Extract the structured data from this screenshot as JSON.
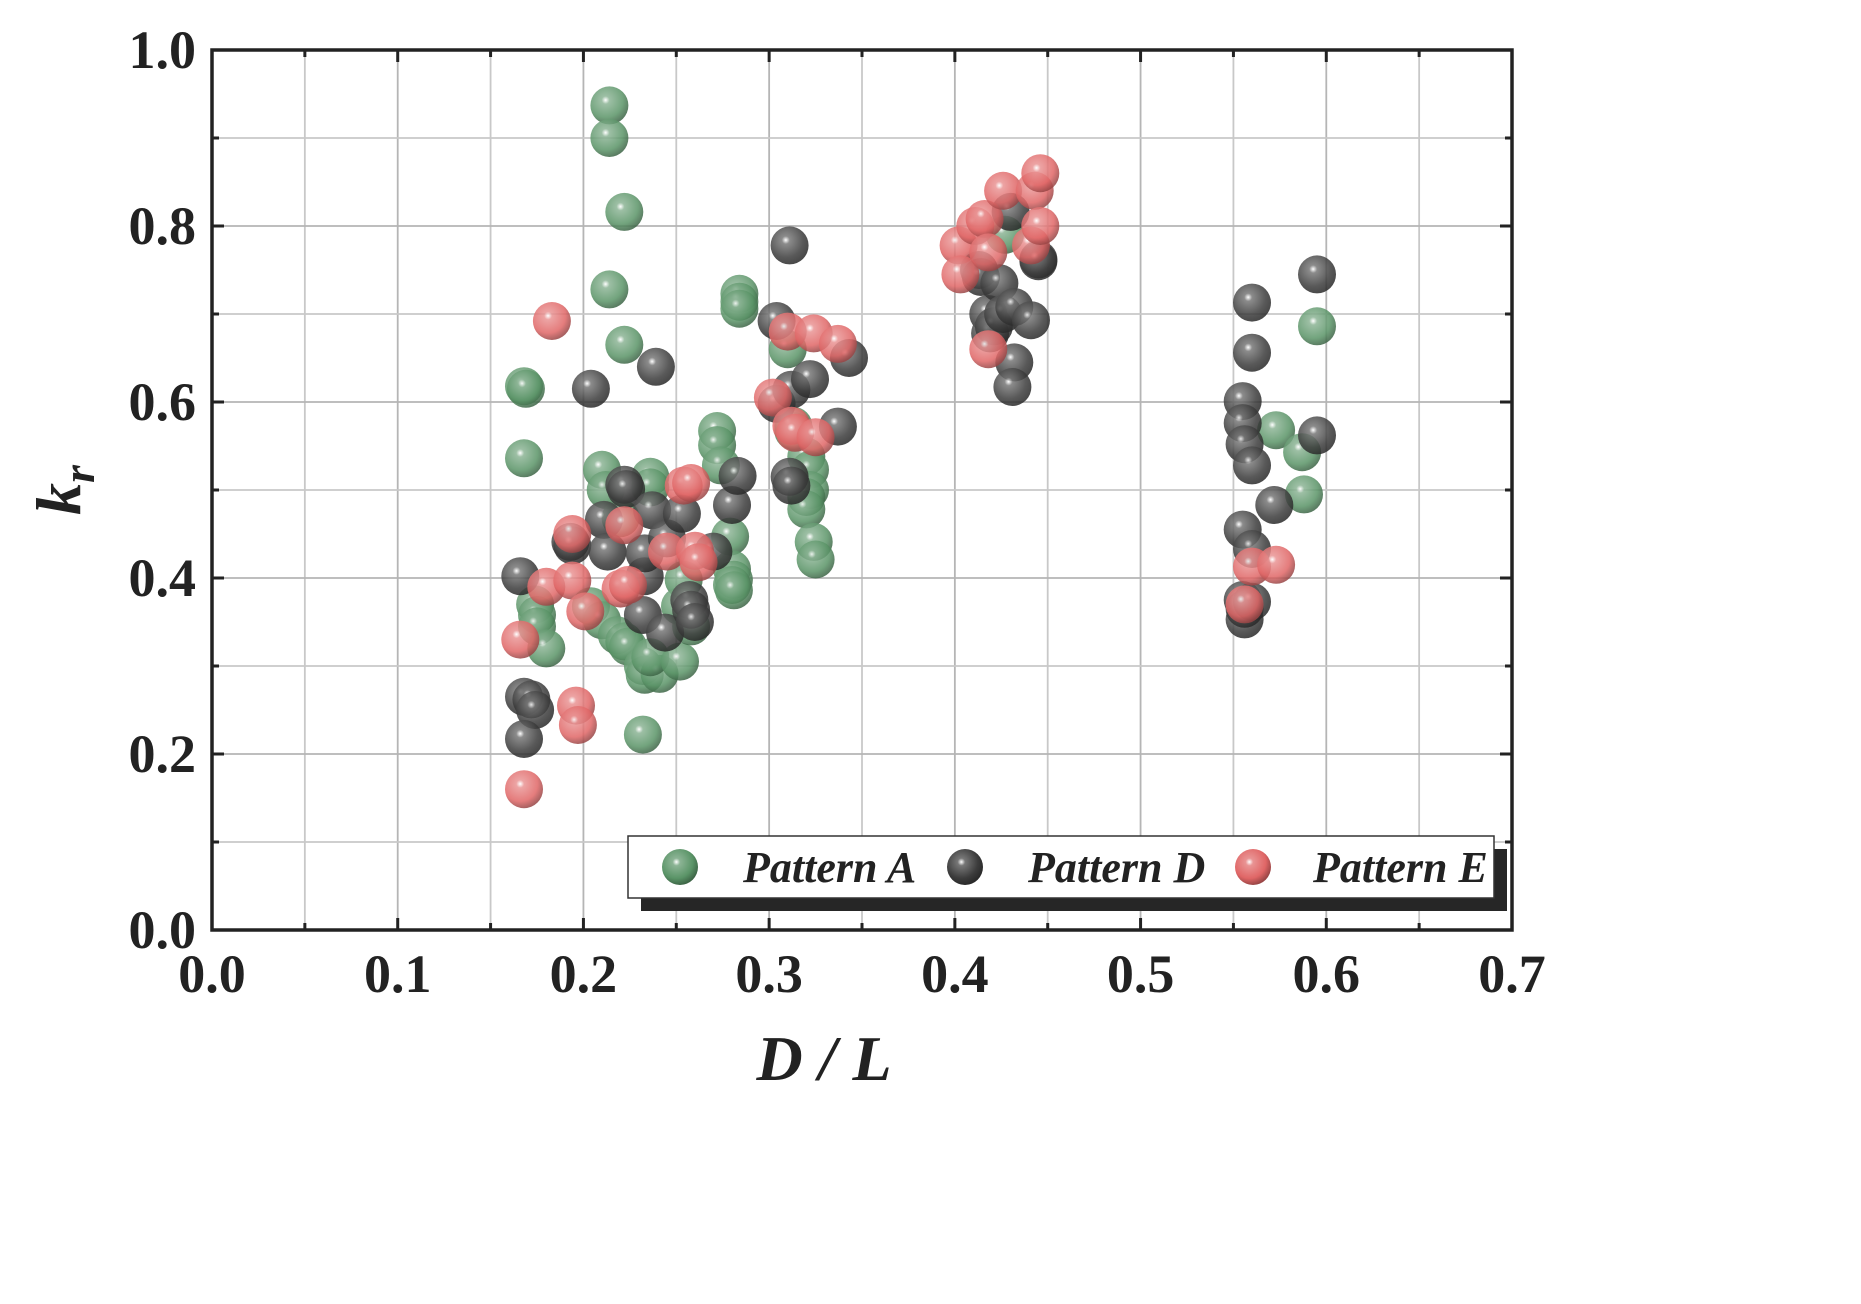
{
  "chart_data": {
    "type": "scatter",
    "title": "",
    "xlabel": "D / L",
    "ylabel_main": "k",
    "ylabel_sub": "r",
    "xlim": [
      0.0,
      0.7
    ],
    "ylim": [
      0.0,
      1.0
    ],
    "x_ticks": [
      "0.0",
      "0.1",
      "0.2",
      "0.3",
      "0.4",
      "0.5",
      "0.6",
      "0.7"
    ],
    "y_ticks": [
      "0.0",
      "0.2",
      "0.4",
      "0.6",
      "0.8",
      "1.0"
    ],
    "grid": true,
    "legend_position": "bottom-right",
    "series": [
      {
        "name": "Pattern A",
        "color": "#5a9467",
        "points": [
          [
            0.168,
            0.618
          ],
          [
            0.169,
            0.615
          ],
          [
            0.168,
            0.536
          ],
          [
            0.174,
            0.37
          ],
          [
            0.175,
            0.358
          ],
          [
            0.175,
            0.345
          ],
          [
            0.18,
            0.32
          ],
          [
            0.214,
            0.937
          ],
          [
            0.214,
            0.9
          ],
          [
            0.222,
            0.816
          ],
          [
            0.214,
            0.728
          ],
          [
            0.222,
            0.665
          ],
          [
            0.21,
            0.523
          ],
          [
            0.212,
            0.5
          ],
          [
            0.22,
            0.468
          ],
          [
            0.204,
            0.368
          ],
          [
            0.21,
            0.352
          ],
          [
            0.218,
            0.335
          ],
          [
            0.222,
            0.328
          ],
          [
            0.224,
            0.322
          ],
          [
            0.232,
            0.3
          ],
          [
            0.233,
            0.29
          ],
          [
            0.241,
            0.291
          ],
          [
            0.236,
            0.31
          ],
          [
            0.232,
            0.222
          ],
          [
            0.236,
            0.515
          ],
          [
            0.236,
            0.503
          ],
          [
            0.252,
            0.305
          ],
          [
            0.254,
            0.398
          ],
          [
            0.252,
            0.368
          ],
          [
            0.258,
            0.345
          ],
          [
            0.272,
            0.567
          ],
          [
            0.272,
            0.551
          ],
          [
            0.274,
            0.528
          ],
          [
            0.279,
            0.447
          ],
          [
            0.28,
            0.41
          ],
          [
            0.281,
            0.398
          ],
          [
            0.28,
            0.392
          ],
          [
            0.281,
            0.386
          ],
          [
            0.284,
            0.723
          ],
          [
            0.284,
            0.714
          ],
          [
            0.284,
            0.706
          ],
          [
            0.31,
            0.66
          ],
          [
            0.313,
            0.573
          ],
          [
            0.313,
            0.567
          ],
          [
            0.32,
            0.538
          ],
          [
            0.322,
            0.523
          ],
          [
            0.322,
            0.5
          ],
          [
            0.32,
            0.492
          ],
          [
            0.32,
            0.478
          ],
          [
            0.324,
            0.441
          ],
          [
            0.325,
            0.421
          ],
          [
            0.427,
            0.79
          ],
          [
            0.573,
            0.568
          ],
          [
            0.587,
            0.543
          ],
          [
            0.588,
            0.495
          ],
          [
            0.595,
            0.686
          ]
        ]
      },
      {
        "name": "Pattern D",
        "color": "#3c3c3c",
        "points": [
          [
            0.166,
            0.402
          ],
          [
            0.168,
            0.265
          ],
          [
            0.172,
            0.262
          ],
          [
            0.174,
            0.25
          ],
          [
            0.168,
            0.217
          ],
          [
            0.193,
            0.441
          ],
          [
            0.194,
            0.437
          ],
          [
            0.204,
            0.615
          ],
          [
            0.211,
            0.466
          ],
          [
            0.213,
            0.43
          ],
          [
            0.222,
            0.506
          ],
          [
            0.223,
            0.501
          ],
          [
            0.232,
            0.358
          ],
          [
            0.233,
            0.402
          ],
          [
            0.233,
            0.428
          ],
          [
            0.237,
            0.477
          ],
          [
            0.239,
            0.64
          ],
          [
            0.244,
            0.338
          ],
          [
            0.245,
            0.445
          ],
          [
            0.253,
            0.473
          ],
          [
            0.257,
            0.375
          ],
          [
            0.258,
            0.364
          ],
          [
            0.26,
            0.35
          ],
          [
            0.27,
            0.43
          ],
          [
            0.28,
            0.483
          ],
          [
            0.283,
            0.516
          ],
          [
            0.304,
            0.692
          ],
          [
            0.304,
            0.598
          ],
          [
            0.311,
            0.778
          ],
          [
            0.312,
            0.614
          ],
          [
            0.311,
            0.515
          ],
          [
            0.312,
            0.505
          ],
          [
            0.322,
            0.626
          ],
          [
            0.337,
            0.572
          ],
          [
            0.343,
            0.65
          ],
          [
            0.413,
            0.75
          ],
          [
            0.414,
            0.742
          ],
          [
            0.418,
            0.7
          ],
          [
            0.419,
            0.678
          ],
          [
            0.421,
            0.686
          ],
          [
            0.424,
            0.735
          ],
          [
            0.426,
            0.7
          ],
          [
            0.43,
            0.816
          ],
          [
            0.432,
            0.708
          ],
          [
            0.432,
            0.645
          ],
          [
            0.431,
            0.617
          ],
          [
            0.441,
            0.693
          ],
          [
            0.445,
            0.762
          ],
          [
            0.445,
            0.76
          ],
          [
            0.555,
            0.601
          ],
          [
            0.555,
            0.576
          ],
          [
            0.556,
            0.552
          ],
          [
            0.555,
            0.455
          ],
          [
            0.555,
            0.375
          ],
          [
            0.556,
            0.353
          ],
          [
            0.556,
            0.365
          ],
          [
            0.56,
            0.713
          ],
          [
            0.56,
            0.656
          ],
          [
            0.56,
            0.528
          ],
          [
            0.56,
            0.433
          ],
          [
            0.56,
            0.373
          ],
          [
            0.572,
            0.483
          ],
          [
            0.595,
            0.745
          ],
          [
            0.595,
            0.562
          ]
        ]
      },
      {
        "name": "Pattern E",
        "color": "#e06666",
        "points": [
          [
            0.166,
            0.33
          ],
          [
            0.168,
            0.16
          ],
          [
            0.18,
            0.39
          ],
          [
            0.183,
            0.692
          ],
          [
            0.194,
            0.45
          ],
          [
            0.194,
            0.397
          ],
          [
            0.196,
            0.255
          ],
          [
            0.197,
            0.233
          ],
          [
            0.201,
            0.362
          ],
          [
            0.22,
            0.388
          ],
          [
            0.222,
            0.46
          ],
          [
            0.224,
            0.392
          ],
          [
            0.245,
            0.43
          ],
          [
            0.254,
            0.505
          ],
          [
            0.258,
            0.508
          ],
          [
            0.26,
            0.431
          ],
          [
            0.262,
            0.418
          ],
          [
            0.302,
            0.605
          ],
          [
            0.31,
            0.68
          ],
          [
            0.312,
            0.573
          ],
          [
            0.314,
            0.565
          ],
          [
            0.324,
            0.678
          ],
          [
            0.325,
            0.56
          ],
          [
            0.337,
            0.666
          ],
          [
            0.402,
            0.778
          ],
          [
            0.403,
            0.745
          ],
          [
            0.411,
            0.8
          ],
          [
            0.416,
            0.808
          ],
          [
            0.418,
            0.77
          ],
          [
            0.418,
            0.66
          ],
          [
            0.426,
            0.84
          ],
          [
            0.441,
            0.778
          ],
          [
            0.443,
            0.84
          ],
          [
            0.446,
            0.8
          ],
          [
            0.446,
            0.86
          ],
          [
            0.556,
            0.37
          ],
          [
            0.56,
            0.413
          ],
          [
            0.573,
            0.415
          ]
        ]
      }
    ]
  }
}
